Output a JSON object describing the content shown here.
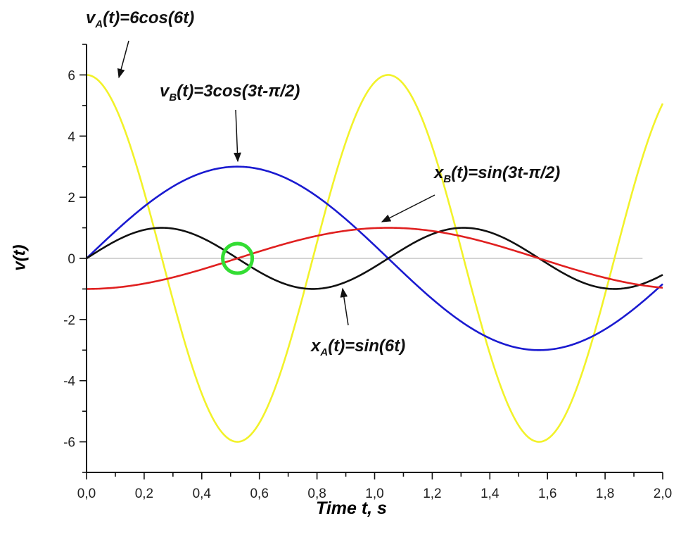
{
  "chart_data": {
    "type": "line",
    "xlabel": "Time t, s",
    "ylabel": "v(t)",
    "xlim": [
      0,
      2.0
    ],
    "ylim": [
      -7,
      7
    ],
    "x_ticks": [
      "0,0",
      "0,2",
      "0,4",
      "0,6",
      "0,8",
      "1,0",
      "1,2",
      "1,4",
      "1,6",
      "1,8",
      "2,0"
    ],
    "x_tick_values": [
      0,
      0.2,
      0.4,
      0.6,
      0.8,
      1.0,
      1.2,
      1.4,
      1.6,
      1.8,
      2.0
    ],
    "y_ticks": [
      "-6",
      "-4",
      "-2",
      "0",
      "2",
      "4",
      "6"
    ],
    "y_tick_values": [
      -6,
      -4,
      -2,
      0,
      2,
      4,
      6
    ],
    "series": [
      {
        "name": "v_A(t)=6cos(6t)",
        "func": "cos",
        "amplitude": 6,
        "omega": 6,
        "phase": 0,
        "color": "#f2f22a"
      },
      {
        "name": "v_B(t)=3cos(3t-π/2)",
        "func": "cos",
        "amplitude": 3,
        "omega": 3,
        "phase": -1.5708,
        "color": "#1a1ad0"
      },
      {
        "name": "x_A(t)=sin(6t)",
        "func": "sin",
        "amplitude": 1,
        "omega": 6,
        "phase": 0,
        "color": "#111111"
      },
      {
        "name": "x_B(t)=sin(3t-π/2)",
        "func": "sin",
        "amplitude": 1,
        "omega": 3,
        "phase": -1.5708,
        "color": "#e02020"
      }
    ],
    "zero_line_color": "#bbbbbb",
    "highlight": {
      "x": 0.524,
      "y": 0,
      "color": "#33dd33"
    },
    "annotations": [
      {
        "main": "v",
        "sub": "A",
        "rest": "(t)=6cos(6t)"
      },
      {
        "main": "v",
        "sub": "B",
        "rest": "(t)=3cos(3t-π/2)"
      },
      {
        "main": "x",
        "sub": "B",
        "rest": "(t)=sin(3t-π/2)"
      },
      {
        "main": "x",
        "sub": "A",
        "rest": "(t)=sin(6t)"
      }
    ]
  }
}
